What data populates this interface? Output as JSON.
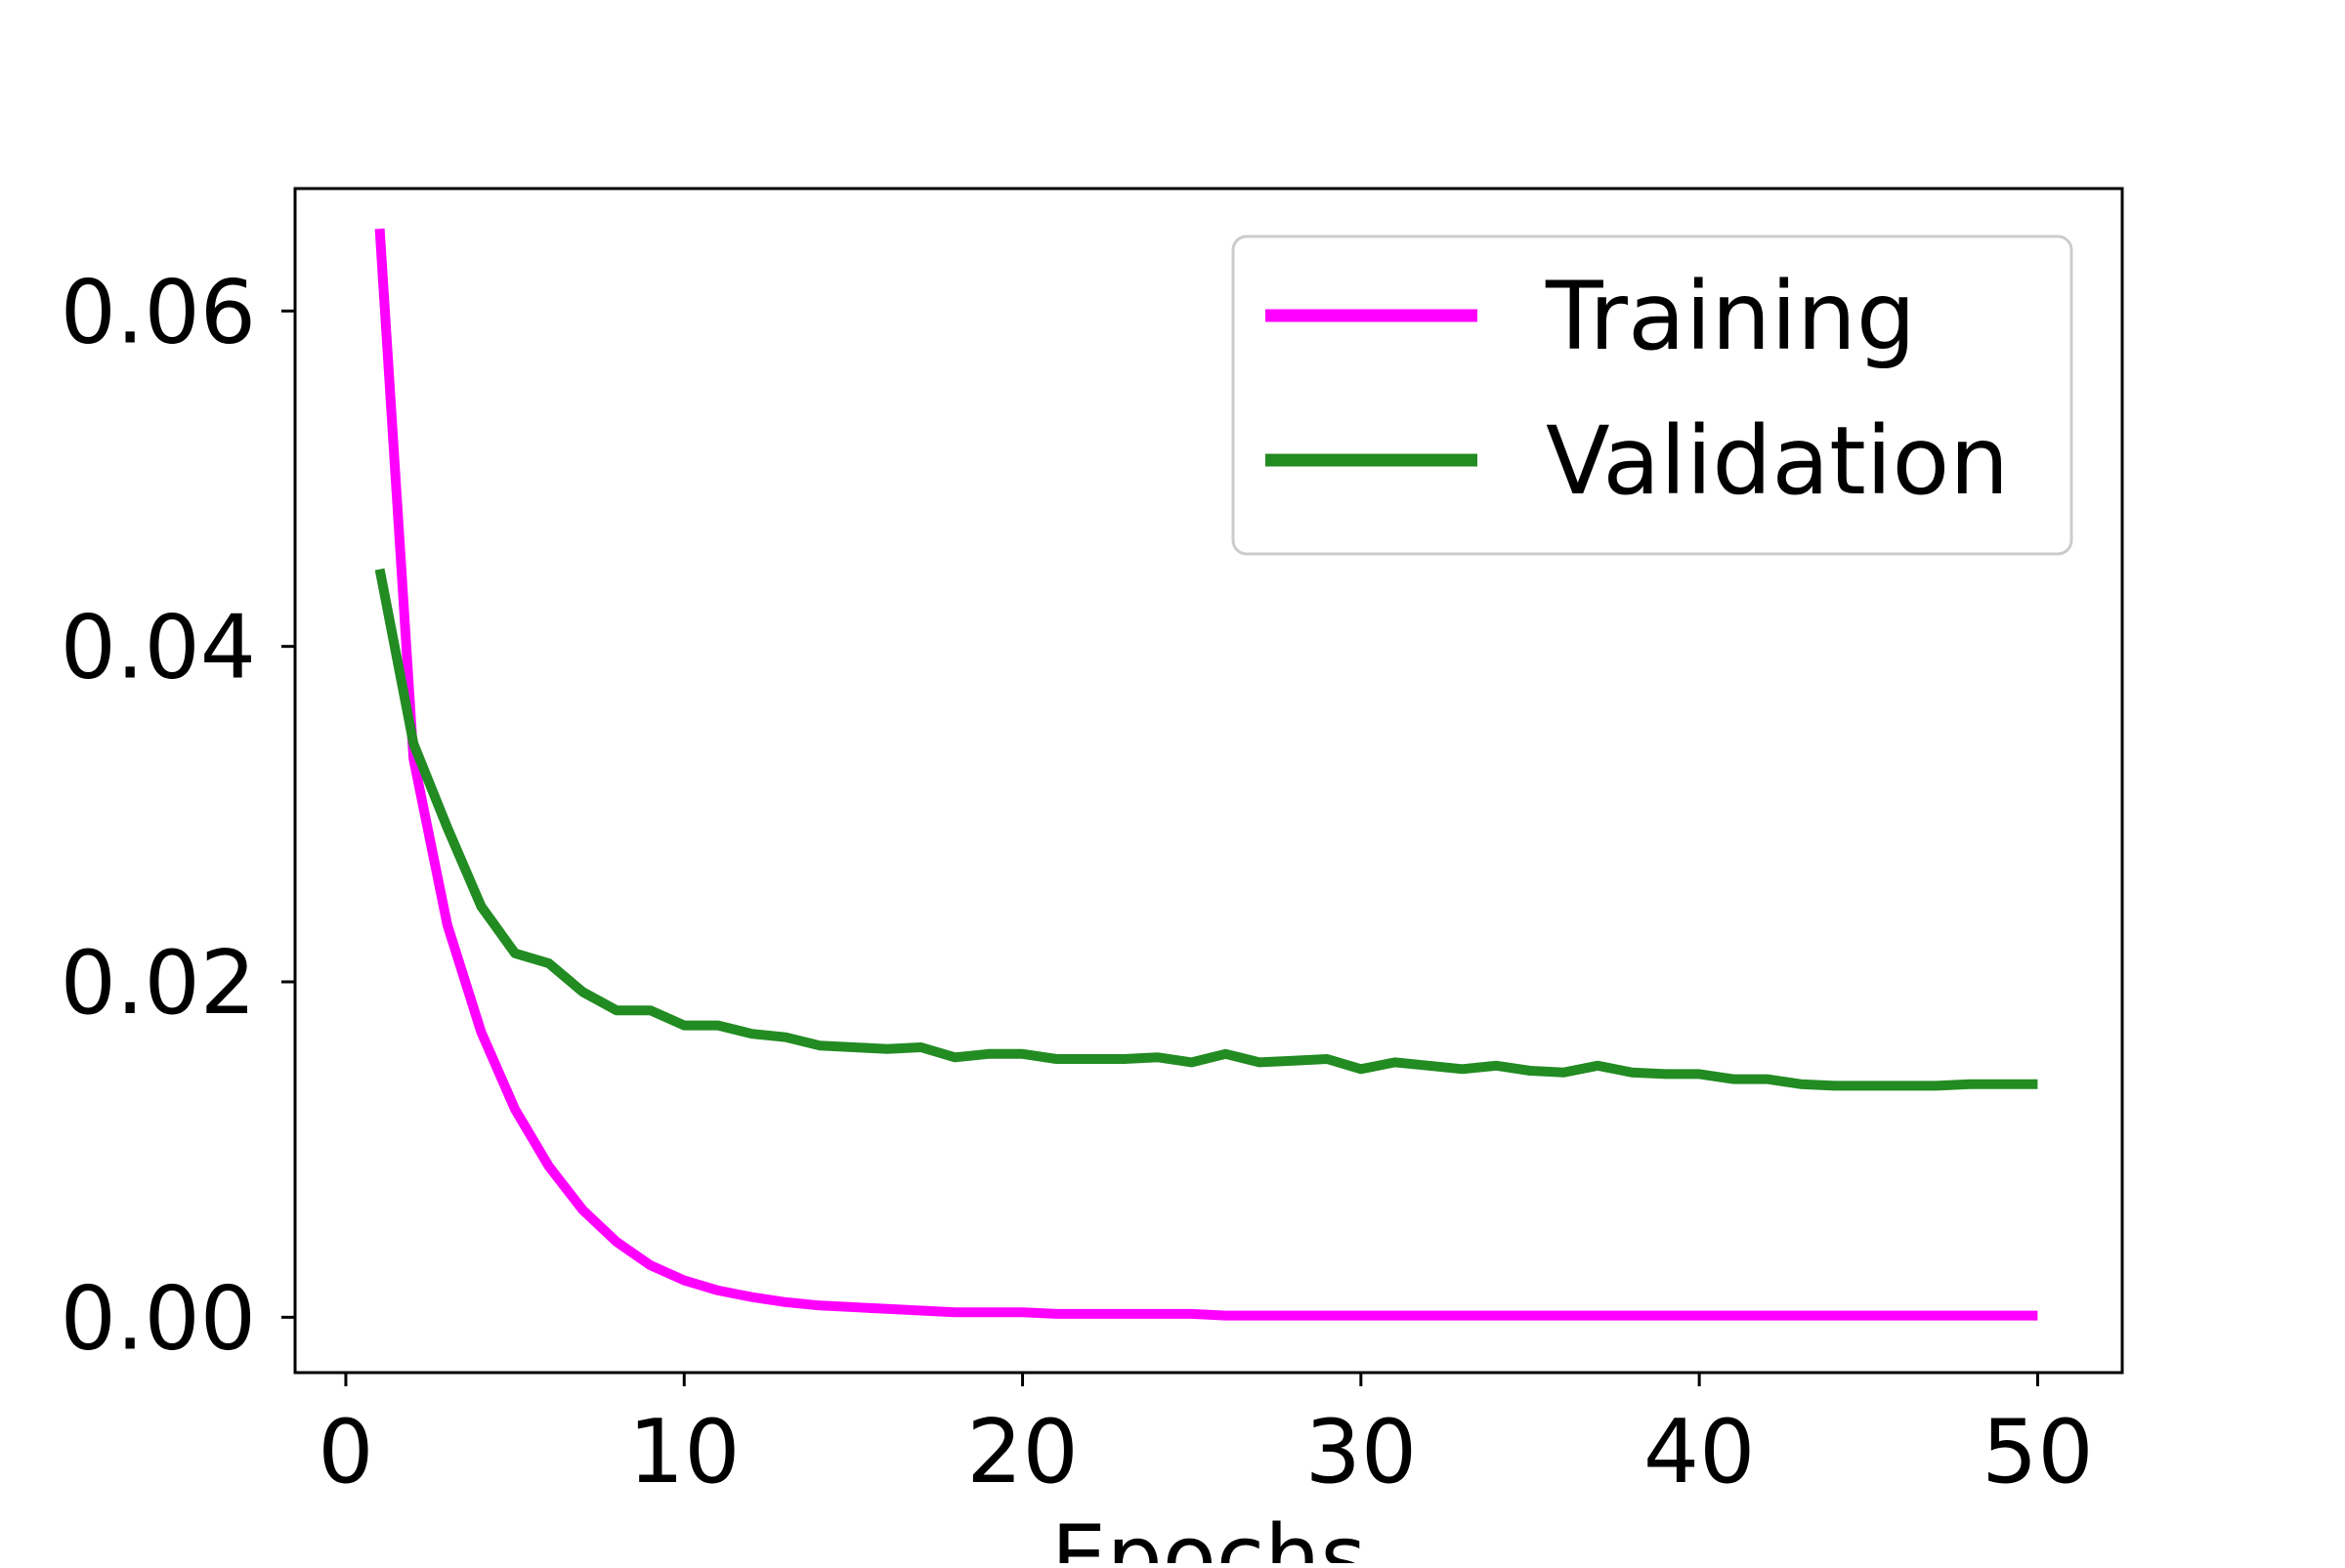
{
  "chart_data": {
    "type": "line",
    "title": "",
    "xlabel": "Epochs",
    "ylabel": "",
    "xlim": [
      -1.5,
      52.5
    ],
    "ylim": [
      -0.0033,
      0.0673
    ],
    "xticks": [
      0,
      10,
      20,
      30,
      40,
      50
    ],
    "yticks": [
      0.0,
      0.02,
      0.04,
      0.06
    ],
    "xtick_labels": [
      "0",
      "10",
      "20",
      "30",
      "40",
      "50"
    ],
    "ytick_labels": [
      "0.00",
      "0.02",
      "0.04",
      "0.06"
    ],
    "grid": false,
    "legend": {
      "position": "top-right"
    },
    "x": [
      1,
      2,
      3,
      4,
      5,
      6,
      7,
      8,
      9,
      10,
      11,
      12,
      13,
      14,
      15,
      16,
      17,
      18,
      19,
      20,
      21,
      22,
      23,
      24,
      25,
      26,
      27,
      28,
      29,
      30,
      31,
      32,
      33,
      34,
      35,
      36,
      37,
      38,
      39,
      40,
      41,
      42,
      43,
      44,
      45,
      46,
      47,
      48,
      49,
      50
    ],
    "series": [
      {
        "name": "Training",
        "color": "#ff00ff",
        "values": [
          0.0649,
          0.0333,
          0.0234,
          0.017,
          0.0124,
          0.009,
          0.0064,
          0.0045,
          0.0031,
          0.0022,
          0.0016,
          0.0012,
          0.0009,
          0.0007,
          0.0006,
          0.0005,
          0.0004,
          0.0003,
          0.0003,
          0.0003,
          0.0002,
          0.0002,
          0.0002,
          0.0002,
          0.0002,
          0.0001,
          0.0001,
          0.0001,
          0.0001,
          0.0001,
          0.0001,
          0.0001,
          0.0001,
          0.0001,
          0.0001,
          0.0001,
          0.0001,
          0.0001,
          0.0001,
          0.0001,
          0.0001,
          0.0001,
          0.0001,
          0.0001,
          0.0001,
          0.0001,
          0.0001,
          0.0001,
          0.0001,
          0.0001
        ]
      },
      {
        "name": "Validation",
        "color": "#228b22",
        "values": [
          0.0446,
          0.0342,
          0.0292,
          0.0245,
          0.0217,
          0.0211,
          0.0194,
          0.0183,
          0.0183,
          0.0174,
          0.0174,
          0.0169,
          0.0167,
          0.0162,
          0.0161,
          0.016,
          0.0161,
          0.0155,
          0.0157,
          0.0157,
          0.0154,
          0.0154,
          0.0154,
          0.0155,
          0.0152,
          0.0157,
          0.0152,
          0.0153,
          0.0154,
          0.0148,
          0.0152,
          0.015,
          0.0148,
          0.015,
          0.0147,
          0.0146,
          0.015,
          0.0146,
          0.0145,
          0.0145,
          0.0142,
          0.0142,
          0.0139,
          0.0138,
          0.0138,
          0.0138,
          0.0138,
          0.0139,
          0.0139,
          0.0139
        ]
      }
    ]
  }
}
